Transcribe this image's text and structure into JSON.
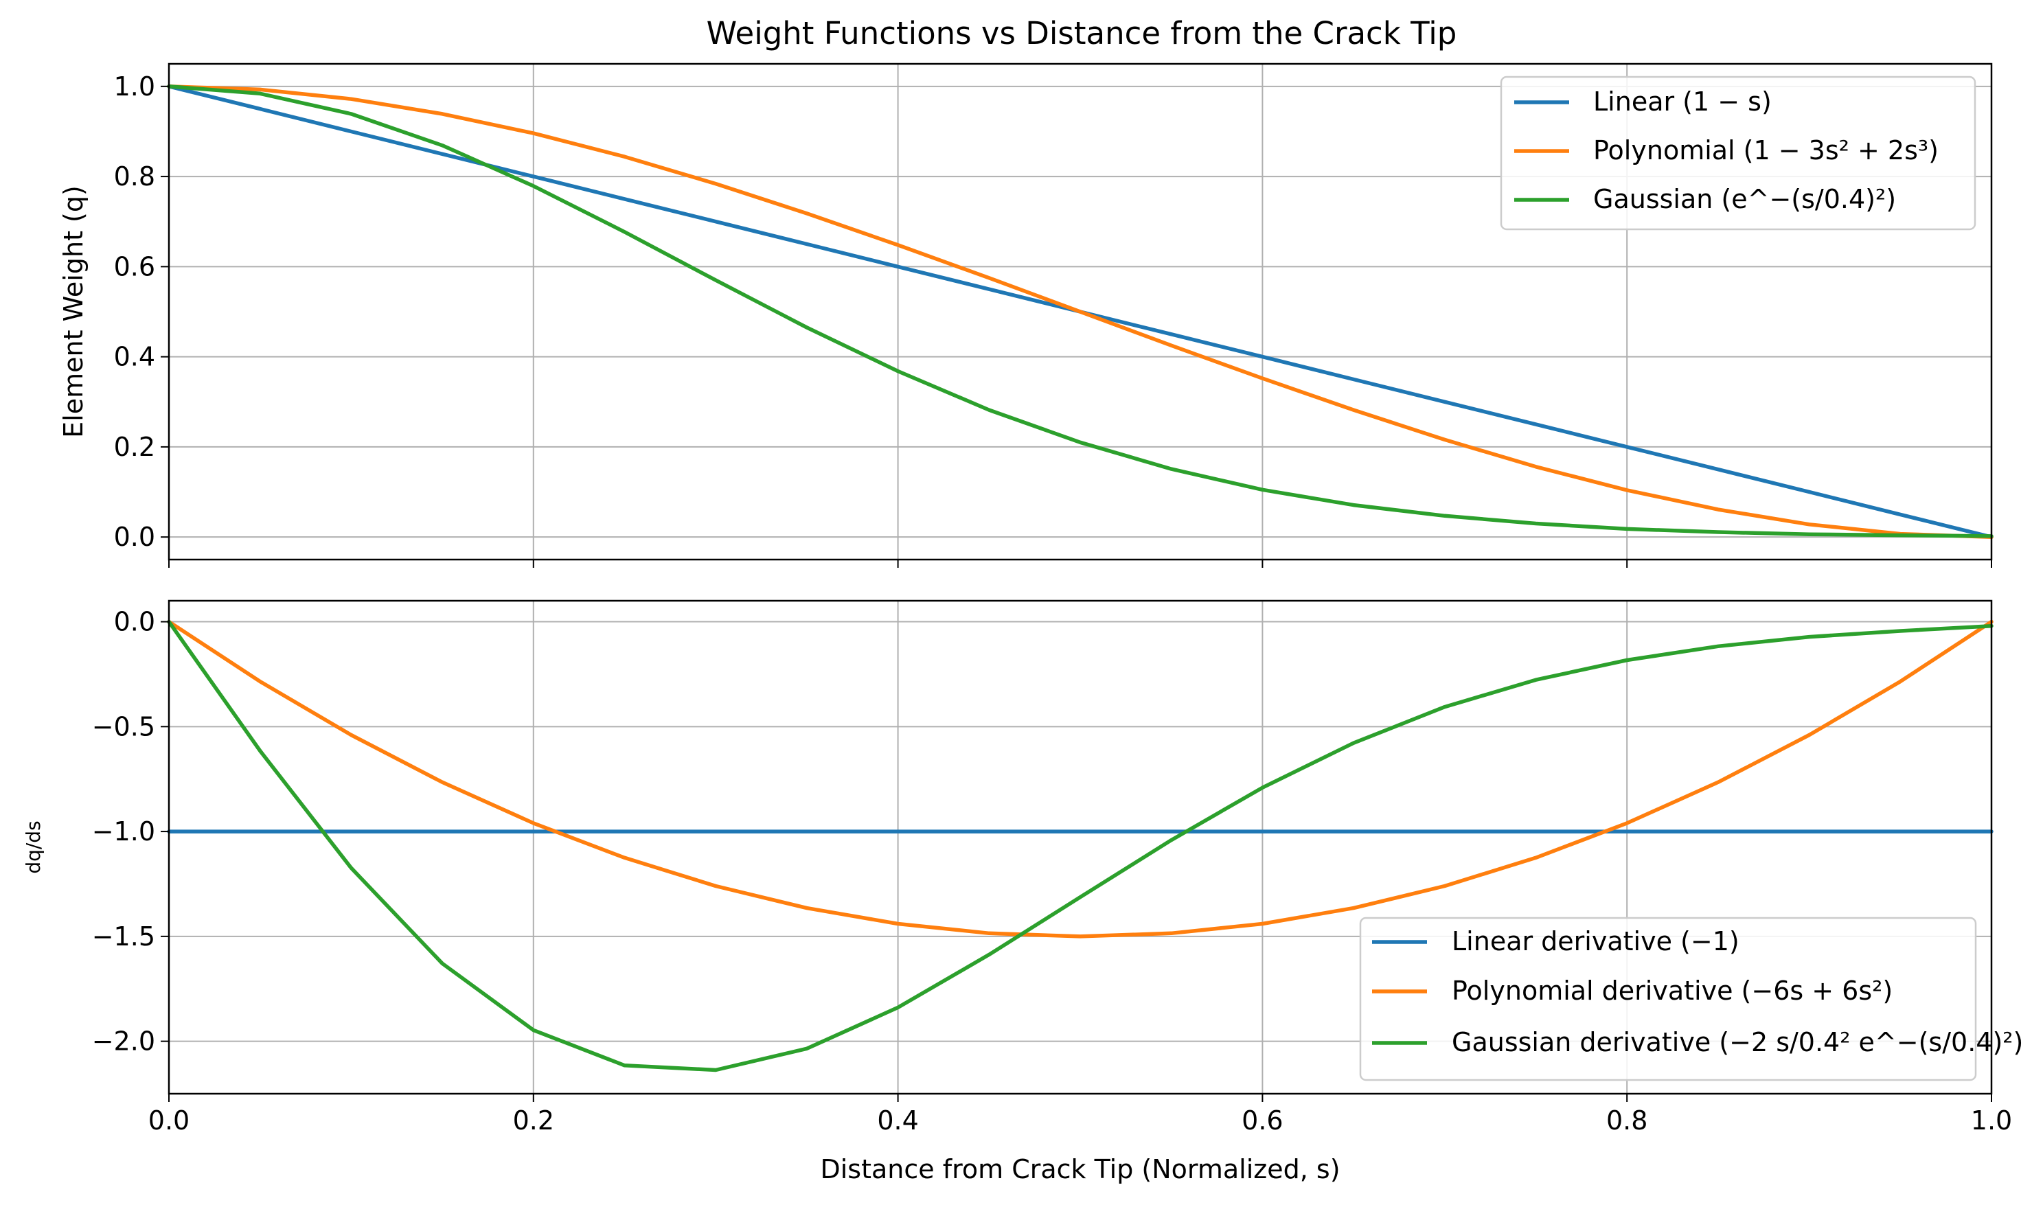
{
  "chart_data": [
    {
      "type": "line",
      "title": "Weight Functions vs Distance from the Crack Tip",
      "xlabel": "",
      "ylabel": "Element Weight (q)",
      "xlim": [
        0.0,
        1.0
      ],
      "ylim": [
        -0.05,
        1.05
      ],
      "x_ticks": [
        "0.0",
        "0.2",
        "0.4",
        "0.6",
        "0.8",
        "1.0"
      ],
      "y_ticks": [
        "0.0",
        "0.2",
        "0.4",
        "0.6",
        "0.8",
        "1.0"
      ],
      "grid": true,
      "legend_position": "top-right",
      "x": [
        0.0,
        0.05,
        0.1,
        0.15,
        0.2,
        0.25,
        0.3,
        0.35,
        0.4,
        0.45,
        0.5,
        0.55,
        0.6,
        0.65,
        0.7,
        0.75,
        0.8,
        0.85,
        0.9,
        0.95,
        1.0
      ],
      "series": [
        {
          "name": "Linear (1 − s)",
          "color": "#1f77b4",
          "values": [
            1.0,
            0.95,
            0.9,
            0.85,
            0.8,
            0.75,
            0.7,
            0.65,
            0.6,
            0.55,
            0.5,
            0.45,
            0.4,
            0.35,
            0.3,
            0.25,
            0.2,
            0.15,
            0.1,
            0.05,
            0.0
          ]
        },
        {
          "name": "Polynomial (1 − 3s² + 2s³)",
          "color": "#ff7f0e",
          "values": [
            1.0,
            0.993,
            0.972,
            0.939,
            0.896,
            0.844,
            0.784,
            0.718,
            0.648,
            0.575,
            0.5,
            0.425,
            0.352,
            0.282,
            0.216,
            0.156,
            0.104,
            0.061,
            0.028,
            0.007,
            0.0
          ]
        },
        {
          "name": "Gaussian (e^−(s/0.4)²)",
          "color": "#2ca02c",
          "values": [
            1.0,
            0.984,
            0.939,
            0.869,
            0.779,
            0.677,
            0.57,
            0.465,
            0.368,
            0.282,
            0.21,
            0.151,
            0.105,
            0.071,
            0.047,
            0.03,
            0.018,
            0.011,
            0.006,
            0.004,
            0.002
          ]
        }
      ]
    },
    {
      "type": "line",
      "xlabel": "Distance from Crack Tip (Normalized, s)",
      "ylabel": "dq/ds",
      "xlim": [
        0.0,
        1.0
      ],
      "ylim": [
        -2.25,
        0.1
      ],
      "x_ticks": [
        "0.0",
        "0.2",
        "0.4",
        "0.6",
        "0.8",
        "1.0"
      ],
      "y_ticks": [
        "0.0",
        "−0.5",
        "−1.0",
        "−1.5",
        "−2.0"
      ],
      "grid": true,
      "legend_position": "bottom-right",
      "x": [
        0.0,
        0.05,
        0.1,
        0.15,
        0.2,
        0.25,
        0.3,
        0.35,
        0.4,
        0.45,
        0.5,
        0.55,
        0.6,
        0.65,
        0.7,
        0.75,
        0.8,
        0.85,
        0.9,
        0.95,
        1.0
      ],
      "series": [
        {
          "name": "Linear derivative (−1)",
          "color": "#1f77b4",
          "values": [
            -1,
            -1,
            -1,
            -1,
            -1,
            -1,
            -1,
            -1,
            -1,
            -1,
            -1,
            -1,
            -1,
            -1,
            -1,
            -1,
            -1,
            -1,
            -1,
            -1,
            -1
          ]
        },
        {
          "name": "Polynomial derivative (−6s + 6s²)",
          "color": "#ff7f0e",
          "values": [
            0.0,
            -0.285,
            -0.54,
            -0.765,
            -0.96,
            -1.125,
            -1.26,
            -1.365,
            -1.44,
            -1.485,
            -1.5,
            -1.485,
            -1.44,
            -1.365,
            -1.26,
            -1.125,
            -0.96,
            -0.765,
            -0.54,
            -0.285,
            0.0
          ]
        },
        {
          "name": "Gaussian derivative (−2 s/0.4² e^−(s/0.4)²)",
          "color": "#2ca02c",
          "values": [
            0.0,
            -0.615,
            -1.174,
            -1.629,
            -1.947,
            -2.115,
            -2.137,
            -2.035,
            -1.839,
            -1.587,
            -1.313,
            -1.041,
            -0.791,
            -0.578,
            -0.406,
            -0.277,
            -0.183,
            -0.117,
            -0.072,
            -0.044,
            -0.02
          ]
        }
      ]
    }
  ]
}
